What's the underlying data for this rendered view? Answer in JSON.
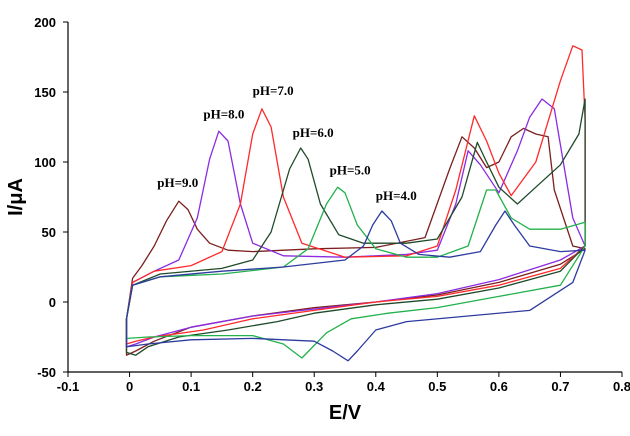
{
  "chart_data": {
    "type": "line",
    "title": "",
    "xlabel": "E/V",
    "ylabel": "I/μA",
    "xlim": [
      -0.1,
      0.8
    ],
    "ylim": [
      -50,
      200
    ],
    "grid": false,
    "legend": "none",
    "x_ticks": [
      "-0.1",
      "0",
      "0.1",
      "0.2",
      "0.3",
      "0.4",
      "0.5",
      "0.6",
      "0.7",
      "0.8"
    ],
    "y_ticks": [
      "-50",
      "0",
      "50",
      "100",
      "150",
      "200"
    ],
    "annotations": [
      {
        "text": "pH=9.0",
        "x": 0.045,
        "y": 82
      },
      {
        "text": "pH=8.0",
        "x": 0.12,
        "y": 131
      },
      {
        "text": "pH=7.0",
        "x": 0.2,
        "y": 148
      },
      {
        "text": "pH=6.0",
        "x": 0.265,
        "y": 118
      },
      {
        "text": "pH=5.0",
        "x": 0.325,
        "y": 91
      },
      {
        "text": "pH=4.0",
        "x": 0.4,
        "y": 73
      }
    ],
    "series": [
      {
        "label": "pH=9.0",
        "color": "#7b1f1f",
        "forward": [
          [
            -0.005,
            -12
          ],
          [
            0.005,
            17
          ],
          [
            0.02,
            26
          ],
          [
            0.04,
            40
          ],
          [
            0.06,
            58
          ],
          [
            0.08,
            72
          ],
          [
            0.095,
            66
          ],
          [
            0.11,
            52
          ],
          [
            0.13,
            42
          ],
          [
            0.16,
            37
          ],
          [
            0.2,
            36
          ],
          [
            0.3,
            38
          ],
          [
            0.4,
            39
          ],
          [
            0.48,
            46
          ],
          [
            0.52,
            95
          ],
          [
            0.54,
            118
          ],
          [
            0.56,
            110
          ],
          [
            0.58,
            96
          ],
          [
            0.6,
            100
          ],
          [
            0.62,
            118
          ],
          [
            0.64,
            124
          ],
          [
            0.66,
            120
          ],
          [
            0.68,
            118
          ],
          [
            0.69,
            80
          ],
          [
            0.72,
            40
          ],
          [
            0.74,
            38
          ]
        ],
        "reverse": [
          [
            0.74,
            38
          ],
          [
            0.7,
            27
          ],
          [
            0.6,
            14
          ],
          [
            0.5,
            5
          ],
          [
            0.4,
            0
          ],
          [
            0.3,
            -4
          ],
          [
            0.2,
            -10
          ],
          [
            0.1,
            -18
          ],
          [
            0.04,
            -28
          ],
          [
            0.01,
            -35
          ],
          [
            -0.005,
            -38
          ]
        ]
      },
      {
        "label": "pH=8.0",
        "color": "#8b2be2",
        "forward": [
          [
            -0.005,
            -12
          ],
          [
            0.005,
            14
          ],
          [
            0.04,
            22
          ],
          [
            0.08,
            30
          ],
          [
            0.11,
            60
          ],
          [
            0.13,
            102
          ],
          [
            0.145,
            122
          ],
          [
            0.16,
            115
          ],
          [
            0.18,
            70
          ],
          [
            0.2,
            42
          ],
          [
            0.25,
            33
          ],
          [
            0.35,
            32
          ],
          [
            0.45,
            34
          ],
          [
            0.5,
            37
          ],
          [
            0.53,
            70
          ],
          [
            0.55,
            108
          ],
          [
            0.57,
            98
          ],
          [
            0.6,
            78
          ],
          [
            0.63,
            108
          ],
          [
            0.65,
            132
          ],
          [
            0.67,
            145
          ],
          [
            0.69,
            138
          ],
          [
            0.72,
            60
          ],
          [
            0.74,
            40
          ]
        ],
        "reverse": [
          [
            0.74,
            40
          ],
          [
            0.7,
            30
          ],
          [
            0.6,
            16
          ],
          [
            0.5,
            6
          ],
          [
            0.4,
            0
          ],
          [
            0.3,
            -5
          ],
          [
            0.2,
            -10
          ],
          [
            0.1,
            -18
          ],
          [
            0.04,
            -25
          ],
          [
            0.01,
            -30
          ],
          [
            -0.005,
            -32
          ]
        ]
      },
      {
        "label": "pH=7.0",
        "color": "#ff2a2a",
        "forward": [
          [
            -0.005,
            -12
          ],
          [
            0.005,
            14
          ],
          [
            0.04,
            22
          ],
          [
            0.1,
            26
          ],
          [
            0.15,
            36
          ],
          [
            0.18,
            70
          ],
          [
            0.2,
            120
          ],
          [
            0.215,
            138
          ],
          [
            0.23,
            125
          ],
          [
            0.25,
            75
          ],
          [
            0.28,
            42
          ],
          [
            0.35,
            32
          ],
          [
            0.45,
            33
          ],
          [
            0.5,
            40
          ],
          [
            0.53,
            80
          ],
          [
            0.56,
            133
          ],
          [
            0.58,
            115
          ],
          [
            0.6,
            92
          ],
          [
            0.62,
            76
          ],
          [
            0.66,
            100
          ],
          [
            0.7,
            158
          ],
          [
            0.72,
            183
          ],
          [
            0.735,
            180
          ],
          [
            0.74,
            130
          ],
          [
            0.74,
            40
          ]
        ],
        "reverse": [
          [
            0.74,
            40
          ],
          [
            0.7,
            24
          ],
          [
            0.6,
            12
          ],
          [
            0.5,
            4
          ],
          [
            0.4,
            0
          ],
          [
            0.3,
            -6
          ],
          [
            0.2,
            -12
          ],
          [
            0.12,
            -20
          ],
          [
            0.04,
            -25
          ],
          [
            0.01,
            -28
          ],
          [
            -0.005,
            -30
          ]
        ]
      },
      {
        "label": "pH=6.0",
        "color": "#1f4a2a",
        "forward": [
          [
            -0.005,
            -12
          ],
          [
            0.005,
            12
          ],
          [
            0.05,
            20
          ],
          [
            0.15,
            24
          ],
          [
            0.2,
            30
          ],
          [
            0.23,
            50
          ],
          [
            0.26,
            95
          ],
          [
            0.278,
            110
          ],
          [
            0.29,
            102
          ],
          [
            0.31,
            70
          ],
          [
            0.34,
            48
          ],
          [
            0.38,
            42
          ],
          [
            0.45,
            42
          ],
          [
            0.5,
            45
          ],
          [
            0.54,
            75
          ],
          [
            0.565,
            114
          ],
          [
            0.58,
            100
          ],
          [
            0.6,
            82
          ],
          [
            0.63,
            70
          ],
          [
            0.66,
            82
          ],
          [
            0.7,
            98
          ],
          [
            0.73,
            120
          ],
          [
            0.74,
            145
          ],
          [
            0.74,
            40
          ]
        ],
        "reverse": [
          [
            0.74,
            40
          ],
          [
            0.7,
            22
          ],
          [
            0.6,
            10
          ],
          [
            0.5,
            2
          ],
          [
            0.4,
            -2
          ],
          [
            0.3,
            -8
          ],
          [
            0.24,
            -14
          ],
          [
            0.16,
            -20
          ],
          [
            0.08,
            -25
          ],
          [
            0.03,
            -32
          ],
          [
            0.01,
            -38
          ],
          [
            -0.005,
            -36
          ]
        ]
      },
      {
        "label": "pH=5.0",
        "color": "#22b14c",
        "forward": [
          [
            -0.005,
            -12
          ],
          [
            0.005,
            12
          ],
          [
            0.05,
            18
          ],
          [
            0.15,
            20
          ],
          [
            0.25,
            25
          ],
          [
            0.29,
            38
          ],
          [
            0.32,
            70
          ],
          [
            0.338,
            82
          ],
          [
            0.35,
            78
          ],
          [
            0.37,
            55
          ],
          [
            0.4,
            38
          ],
          [
            0.45,
            32
          ],
          [
            0.5,
            32
          ],
          [
            0.55,
            40
          ],
          [
            0.58,
            80
          ],
          [
            0.595,
            80
          ],
          [
            0.62,
            60
          ],
          [
            0.65,
            52
          ],
          [
            0.7,
            52
          ],
          [
            0.74,
            57
          ],
          [
            0.74,
            40
          ]
        ],
        "reverse": [
          [
            0.74,
            40
          ],
          [
            0.7,
            12
          ],
          [
            0.6,
            4
          ],
          [
            0.5,
            -4
          ],
          [
            0.42,
            -8
          ],
          [
            0.36,
            -12
          ],
          [
            0.32,
            -22
          ],
          [
            0.28,
            -40
          ],
          [
            0.25,
            -30
          ],
          [
            0.2,
            -24
          ],
          [
            0.1,
            -24
          ],
          [
            0.03,
            -25
          ],
          [
            -0.005,
            -26
          ]
        ]
      },
      {
        "label": "pH=4.0",
        "color": "#2e3b9f",
        "forward": [
          [
            -0.005,
            -12
          ],
          [
            0.005,
            12
          ],
          [
            0.05,
            18
          ],
          [
            0.15,
            22
          ],
          [
            0.25,
            25
          ],
          [
            0.35,
            30
          ],
          [
            0.38,
            40
          ],
          [
            0.395,
            55
          ],
          [
            0.41,
            65
          ],
          [
            0.425,
            58
          ],
          [
            0.44,
            42
          ],
          [
            0.47,
            34
          ],
          [
            0.52,
            32
          ],
          [
            0.57,
            36
          ],
          [
            0.595,
            55
          ],
          [
            0.61,
            65
          ],
          [
            0.625,
            55
          ],
          [
            0.65,
            40
          ],
          [
            0.7,
            36
          ],
          [
            0.74,
            37
          ]
        ],
        "reverse": [
          [
            0.74,
            37
          ],
          [
            0.72,
            14
          ],
          [
            0.65,
            -6
          ],
          [
            0.55,
            -10
          ],
          [
            0.45,
            -14
          ],
          [
            0.4,
            -20
          ],
          [
            0.37,
            -35
          ],
          [
            0.355,
            -42
          ],
          [
            0.33,
            -35
          ],
          [
            0.3,
            -28
          ],
          [
            0.2,
            -26
          ],
          [
            0.1,
            -27
          ],
          [
            0.03,
            -30
          ],
          [
            -0.005,
            -32
          ]
        ]
      }
    ]
  }
}
